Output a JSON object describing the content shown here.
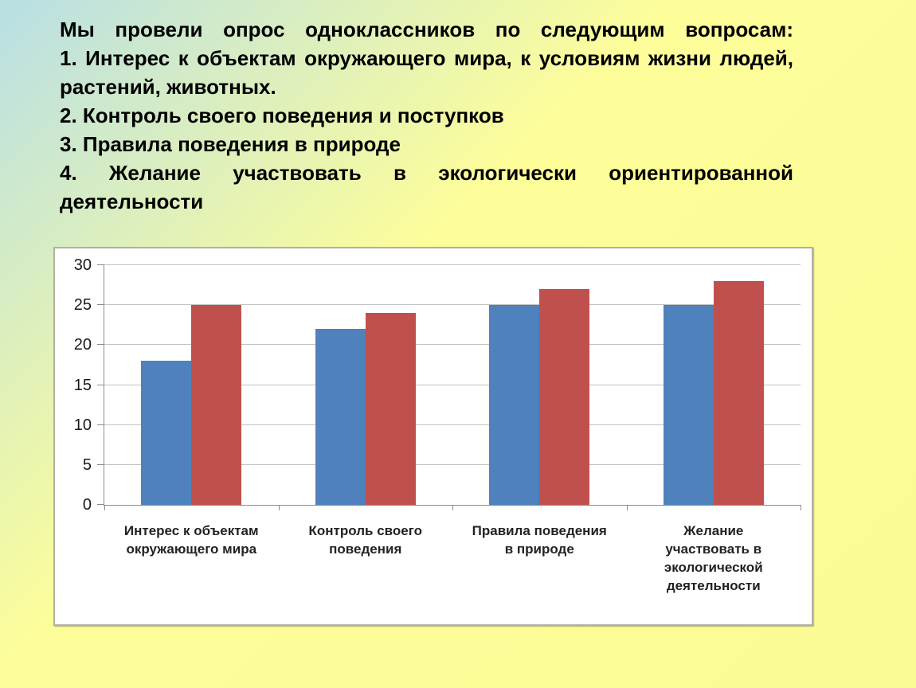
{
  "slide": {
    "background": {
      "gradient_from": "#b8dfe4",
      "gradient_to": "#fdfd9a"
    },
    "intro_items": [
      "Мы провели опрос одноклассников по следующим вопросам:",
      "1. Интерес к объектам окружающего мира, к условиям жизни людей, растений, животных.",
      "2. Контроль своего поведения и поступков",
      "3. Правила поведения в природе",
      "4. Желание участвовать в экологически ориентированной деятельности"
    ]
  },
  "chart_data": {
    "type": "bar",
    "title": "",
    "categories": [
      "Интерес к объектам окружающего мира",
      "Контроль своего поведения",
      "Правила поведения в природе",
      "Желание участвовать в экологической деятельности"
    ],
    "tick_label_lines": [
      [
        "Интерес к объектам",
        "окружающего мира"
      ],
      [
        "Контроль своего",
        "поведения"
      ],
      [
        "Правила поведения",
        "в природе"
      ],
      [
        "Желание",
        "участвовать в",
        "экологической",
        "деятельности"
      ]
    ],
    "series": [
      {
        "name": "blue-series",
        "color": "#4F81BD",
        "values": [
          18,
          22,
          25,
          25
        ]
      },
      {
        "name": "red-series",
        "color": "#C0504D",
        "values": [
          25,
          24,
          27,
          28
        ]
      }
    ],
    "xlabel": "",
    "ylabel": "",
    "ylim": [
      0,
      30
    ],
    "yticks": [
      0,
      5,
      10,
      15,
      20,
      25,
      30
    ],
    "grid": true,
    "legend": "none",
    "plot_background": "#ffffff",
    "gridline_color": "#c2c2c2",
    "axis_color": "#8c8c8c"
  }
}
